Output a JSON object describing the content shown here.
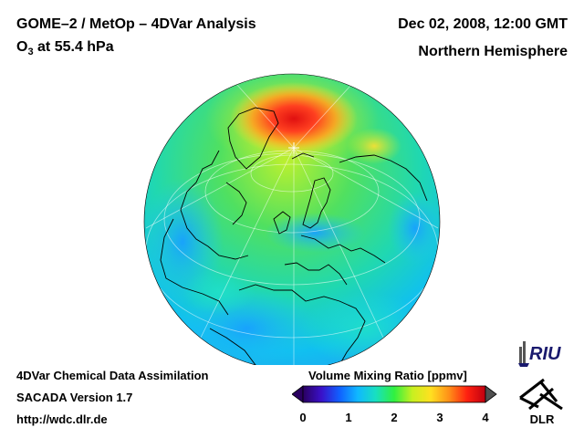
{
  "header": {
    "title": "GOME–2 / MetOp – 4DVar Analysis",
    "species_main": "O",
    "species_sub": "3",
    "species_rest": " at 55.4 hPa",
    "datetime": "Dec 02, 2008, 12:00 GMT",
    "region": "Northern Hemisphere"
  },
  "footer": {
    "line1": "4DVar Chemical Data Assimilation",
    "line2": "SACADA Version 1.7",
    "line3": "http://wdc.dlr.de"
  },
  "colorbar": {
    "title": "Volume Mixing Ratio [ppmv]",
    "ticks": [
      "0",
      "1",
      "2",
      "3",
      "4"
    ],
    "min": 0,
    "max": 4,
    "colors": [
      "#2a0060",
      "#3a10c8",
      "#1060ff",
      "#10b8ff",
      "#18e0c0",
      "#30f040",
      "#c8f020",
      "#ffe020",
      "#ff9018",
      "#ff2010",
      "#c00010"
    ]
  },
  "logos": {
    "riu": "RIU",
    "dlr": "DLR"
  },
  "map": {
    "projection": "orthographic",
    "hemisphere": "Northern Hemisphere"
  }
}
